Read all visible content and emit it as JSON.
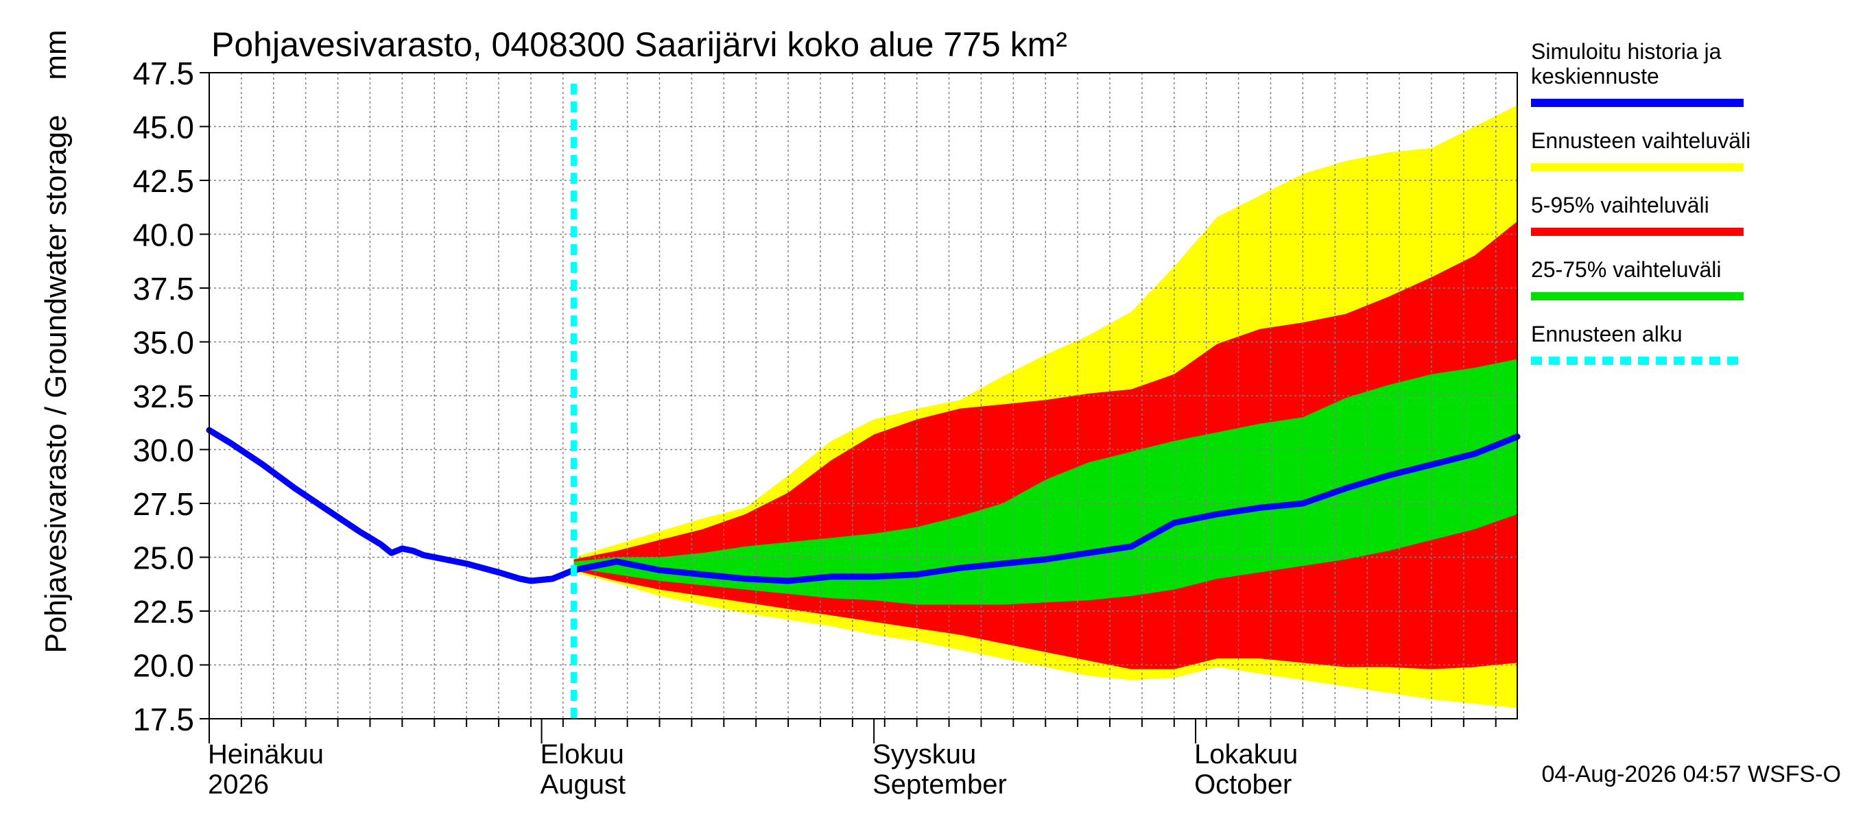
{
  "colors": {
    "history": "#0000ff",
    "total_range": "#ffff00",
    "range_5_95": "#ff0000",
    "range_25_75": "#00e000",
    "forecast_start": "#00ffff",
    "grid": "#808080",
    "axis": "#000000"
  },
  "chart_data": {
    "type": "area",
    "title": "Pohjavesivarasto, 0408300 Saarijärvi koko alue 775 km²",
    "ylabel": "Pohjavesivarasto / Groundwater storage",
    "yunit": "mm",
    "xlim": [
      "2026-07-01",
      "2026-10-31"
    ],
    "ylim": [
      17.5,
      47.5
    ],
    "yticks": [
      "17.5",
      "20.0",
      "22.5",
      "25.0",
      "27.5",
      "30.0",
      "32.5",
      "35.0",
      "37.5",
      "40.0",
      "42.5",
      "45.0",
      "47.5"
    ],
    "grid": true,
    "month_labels": [
      {
        "date": "2026-07-01",
        "fi": "Heinäkuu",
        "en": "2026"
      },
      {
        "date": "2026-08-01",
        "fi": "Elokuu",
        "en": "August"
      },
      {
        "date": "2026-09-01",
        "fi": "Syyskuu",
        "en": "September"
      },
      {
        "date": "2026-10-01",
        "fi": "Lokakuu",
        "en": "October"
      }
    ],
    "forecast_start": "2026-08-04",
    "timestamp": "04-Aug-2026 04:57 WSFS-O",
    "legend_position": "right",
    "legend": [
      {
        "key": "history",
        "label_lines": [
          "Simuloitu historia ja",
          "keskiennuste"
        ],
        "color": "#0000ff",
        "style": "solid"
      },
      {
        "key": "total",
        "label_lines": [
          "Ennusteen vaihteluväli"
        ],
        "color": "#ffff00",
        "style": "solid"
      },
      {
        "key": "p5_95",
        "label_lines": [
          "5-95% vaihteluväli"
        ],
        "color": "#ff0000",
        "style": "solid"
      },
      {
        "key": "p25_75",
        "label_lines": [
          "25-75% vaihteluväli"
        ],
        "color": "#00e000",
        "style": "solid"
      },
      {
        "key": "start",
        "label_lines": [
          "Ennusteen alku"
        ],
        "color": "#00ffff",
        "style": "dashed"
      }
    ],
    "series": [
      {
        "key": "history",
        "x": [
          "2026-07-01",
          "2026-07-03",
          "2026-07-06",
          "2026-07-09",
          "2026-07-12",
          "2026-07-15",
          "2026-07-17",
          "2026-07-18",
          "2026-07-19",
          "2026-07-20",
          "2026-07-21",
          "2026-07-22",
          "2026-07-25",
          "2026-07-28",
          "2026-07-30",
          "2026-07-31",
          "2026-08-02",
          "2026-08-04"
        ],
        "y": [
          30.9,
          30.3,
          29.3,
          28.2,
          27.2,
          26.2,
          25.6,
          25.2,
          25.4,
          25.3,
          25.1,
          25.0,
          24.7,
          24.3,
          24.0,
          23.9,
          24.0,
          24.4
        ]
      },
      {
        "key": "median",
        "x": [
          "2026-08-04",
          "2026-08-08",
          "2026-08-12",
          "2026-08-16",
          "2026-08-20",
          "2026-08-24",
          "2026-08-28",
          "2026-09-01",
          "2026-09-05",
          "2026-09-09",
          "2026-09-13",
          "2026-09-17",
          "2026-09-21",
          "2026-09-25",
          "2026-09-29",
          "2026-10-03",
          "2026-10-07",
          "2026-10-11",
          "2026-10-15",
          "2026-10-19",
          "2026-10-23",
          "2026-10-27",
          "2026-10-31"
        ],
        "y": [
          24.4,
          24.8,
          24.4,
          24.2,
          24.0,
          23.9,
          24.1,
          24.1,
          24.2,
          24.5,
          24.7,
          24.9,
          25.2,
          25.5,
          26.6,
          27.0,
          27.3,
          27.5,
          28.2,
          28.8,
          29.3,
          29.8,
          30.6
        ]
      }
    ],
    "bands": [
      {
        "key": "total",
        "x": [
          "2026-08-04",
          "2026-08-08",
          "2026-08-12",
          "2026-08-16",
          "2026-08-20",
          "2026-08-24",
          "2026-08-28",
          "2026-09-01",
          "2026-09-05",
          "2026-09-09",
          "2026-09-13",
          "2026-09-17",
          "2026-09-21",
          "2026-09-25",
          "2026-09-29",
          "2026-10-03",
          "2026-10-07",
          "2026-10-11",
          "2026-10-15",
          "2026-10-19",
          "2026-10-23",
          "2026-10-27",
          "2026-10-31"
        ],
        "upper": [
          25.0,
          25.6,
          26.2,
          26.8,
          27.3,
          28.8,
          30.4,
          31.4,
          31.9,
          32.3,
          33.4,
          34.4,
          35.3,
          36.4,
          38.5,
          40.8,
          41.8,
          42.8,
          43.4,
          43.8,
          44.0,
          45.0,
          46.0
        ],
        "lower": [
          24.3,
          23.8,
          23.2,
          22.8,
          22.4,
          22.1,
          21.8,
          21.4,
          21.1,
          20.7,
          20.3,
          19.9,
          19.5,
          19.3,
          19.4,
          19.9,
          19.6,
          19.3,
          19.0,
          18.7,
          18.4,
          18.2,
          18.0
        ]
      },
      {
        "key": "p5_95",
        "x": [
          "2026-08-04",
          "2026-08-08",
          "2026-08-12",
          "2026-08-16",
          "2026-08-20",
          "2026-08-24",
          "2026-08-28",
          "2026-09-01",
          "2026-09-05",
          "2026-09-09",
          "2026-09-13",
          "2026-09-17",
          "2026-09-21",
          "2026-09-25",
          "2026-09-29",
          "2026-10-03",
          "2026-10-07",
          "2026-10-11",
          "2026-10-15",
          "2026-10-19",
          "2026-10-23",
          "2026-10-27",
          "2026-10-31"
        ],
        "upper": [
          24.9,
          25.3,
          25.8,
          26.3,
          27.0,
          28.0,
          29.5,
          30.7,
          31.4,
          31.9,
          32.1,
          32.3,
          32.6,
          32.8,
          33.5,
          34.9,
          35.6,
          35.9,
          36.3,
          37.1,
          38.0,
          39.0,
          40.6
        ],
        "lower": [
          24.4,
          23.9,
          23.5,
          23.2,
          22.9,
          22.6,
          22.3,
          22.0,
          21.7,
          21.4,
          21.0,
          20.6,
          20.2,
          19.8,
          19.8,
          20.3,
          20.3,
          20.1,
          19.9,
          19.9,
          19.8,
          19.9,
          20.1
        ]
      },
      {
        "key": "p25_75",
        "x": [
          "2026-08-04",
          "2026-08-08",
          "2026-08-12",
          "2026-08-16",
          "2026-08-20",
          "2026-08-24",
          "2026-08-28",
          "2026-09-01",
          "2026-09-05",
          "2026-09-09",
          "2026-09-13",
          "2026-09-17",
          "2026-09-21",
          "2026-09-25",
          "2026-09-29",
          "2026-10-03",
          "2026-10-07",
          "2026-10-11",
          "2026-10-15",
          "2026-10-19",
          "2026-10-23",
          "2026-10-27",
          "2026-10-31"
        ],
        "upper": [
          24.8,
          25.0,
          25.0,
          25.2,
          25.5,
          25.7,
          25.9,
          26.1,
          26.4,
          26.9,
          27.5,
          28.6,
          29.4,
          29.9,
          30.4,
          30.8,
          31.2,
          31.5,
          32.4,
          33.0,
          33.5,
          33.8,
          34.2
        ],
        "lower": [
          24.5,
          24.2,
          23.9,
          23.7,
          23.5,
          23.3,
          23.1,
          23.0,
          22.8,
          22.8,
          22.8,
          22.9,
          23.0,
          23.2,
          23.5,
          24.0,
          24.3,
          24.6,
          24.9,
          25.3,
          25.8,
          26.3,
          27.0
        ]
      }
    ]
  }
}
